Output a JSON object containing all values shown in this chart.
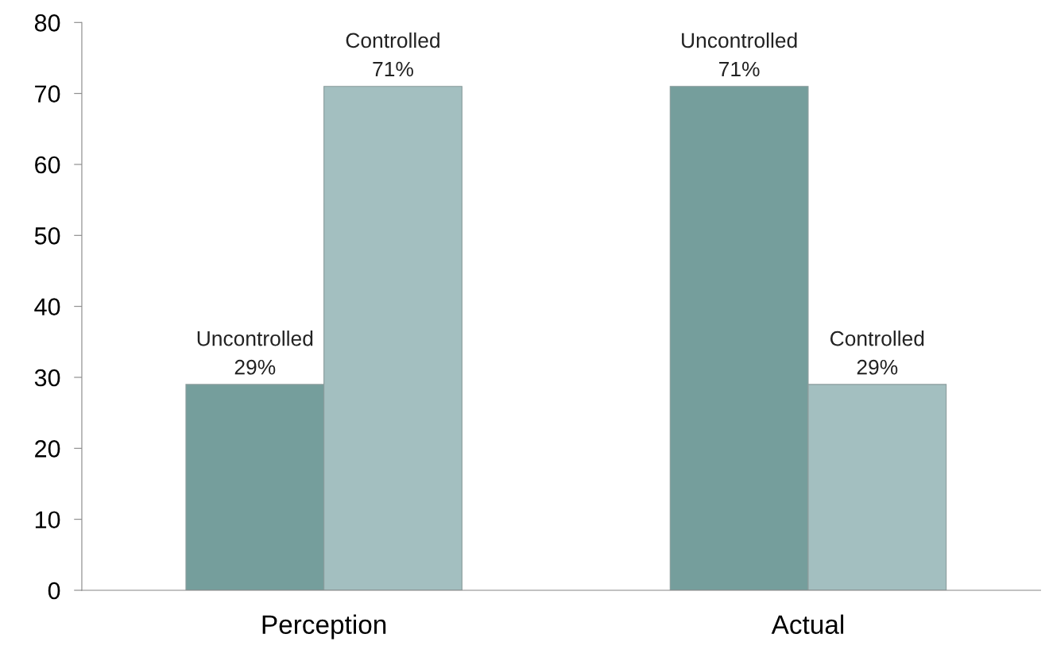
{
  "chart_data": {
    "type": "bar",
    "categories": [
      "Perception",
      "Actual"
    ],
    "series": [
      {
        "color": "#759e9c",
        "values": [
          29,
          71
        ],
        "value_labels": [
          "Uncontrolled\n29%",
          "Uncontrolled\n71%"
        ]
      },
      {
        "color": "#a3bfc0",
        "values": [
          71,
          29
        ],
        "value_labels": [
          "Controlled\n71%",
          "Controlled\n29%"
        ]
      }
    ],
    "ylim": [
      0,
      80
    ],
    "yticks": [
      0,
      10,
      20,
      30,
      40,
      50,
      60,
      70,
      80
    ],
    "grid": false,
    "legend": false
  }
}
